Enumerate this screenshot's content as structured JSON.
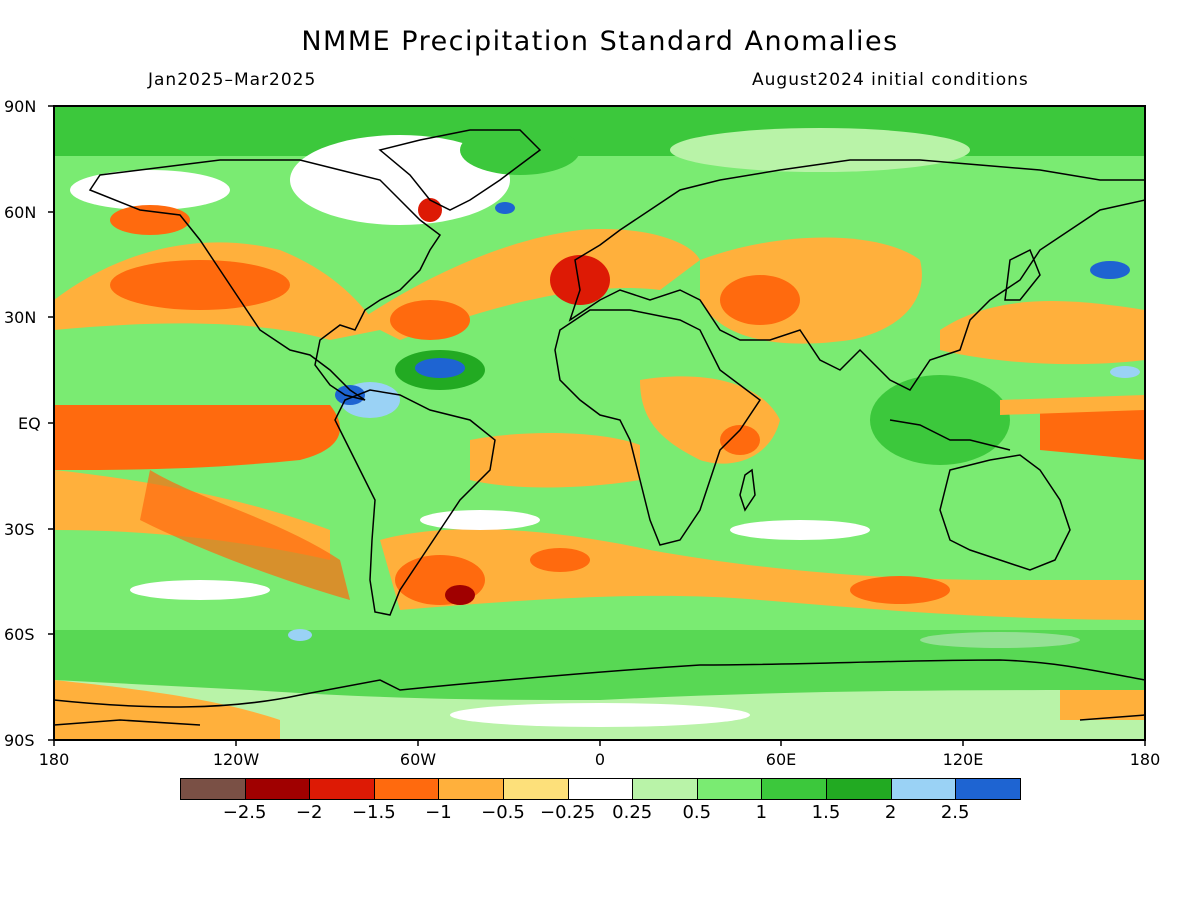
{
  "title": "NMME Precipitation Standard Anomalies",
  "period": "Jan2025–Mar2025",
  "initial_conditions": "August2024 initial conditions",
  "lat_labels": [
    "90N",
    "60N",
    "30N",
    "EQ",
    "30S",
    "60S",
    "90S"
  ],
  "lon_labels": [
    "180",
    "120W",
    "60W",
    "0",
    "60E",
    "120E",
    "180"
  ],
  "legend": {
    "colors": [
      "#7a5045",
      "#a00000",
      "#dd1a05",
      "#ff6a0e",
      "#ffb03c",
      "#fde07a",
      "#ffffff",
      "#b9f3a8",
      "#7aeb72",
      "#3cc83c",
      "#22aa22",
      "#9ad2f5",
      "#1e64d2"
    ],
    "labels": [
      "−2.5",
      "−2",
      "−1.5",
      "−1",
      "−0.5",
      "−0.25",
      "0.25",
      "0.5",
      "1",
      "1.5",
      "2",
      "2.5"
    ]
  }
}
